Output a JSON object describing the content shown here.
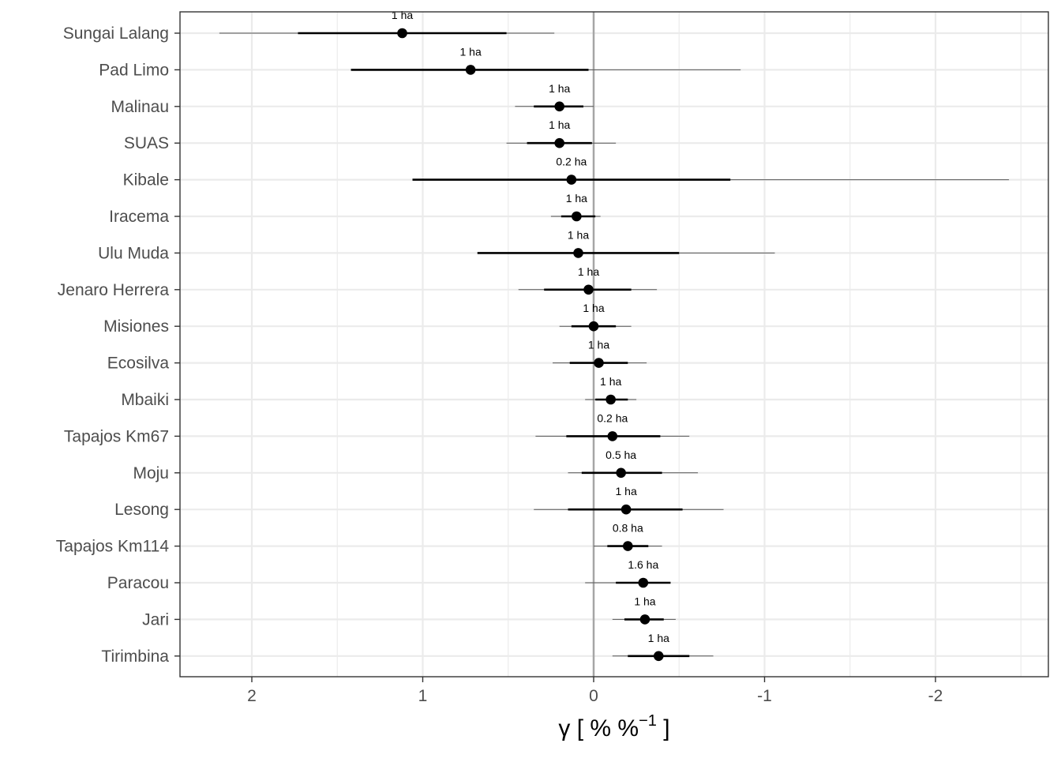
{
  "chart_data": {
    "type": "scatter",
    "title": "",
    "xlabel_main": "γ [ % %",
    "xlabel_sup": "−1",
    "xlabel_end": " ]",
    "ylabel": "",
    "x_reversed": true,
    "xlim": [
      2.4,
      -2.65
    ],
    "xticks": [
      2,
      1,
      0,
      -1,
      -2
    ],
    "xtick_labels": [
      "2",
      "1",
      "0",
      "-1",
      "-2"
    ],
    "grid": true,
    "zero_line": 0,
    "colors": {
      "points": "#000000",
      "grid": "#ebebeb",
      "zero_line": "#a6a6a6",
      "inner_interval": "#000000",
      "outer_interval": "#555555",
      "axis_text": "#4d4d4d",
      "axis_title": "#000000"
    },
    "sites": [
      {
        "name": "Sungai Lalang",
        "estimate": 1.12,
        "inner": [
          1.73,
          0.51
        ],
        "outer": [
          2.19,
          0.23
        ],
        "area": "1 ha"
      },
      {
        "name": "Pad Limo",
        "estimate": 0.72,
        "inner": [
          1.42,
          0.03
        ],
        "outer": [
          1.42,
          -0.86
        ],
        "area": "1 ha"
      },
      {
        "name": "Malinau",
        "estimate": 0.2,
        "inner": [
          0.35,
          0.06
        ],
        "outer": [
          0.46,
          0.0
        ],
        "area": "1 ha"
      },
      {
        "name": "SUAS",
        "estimate": 0.2,
        "inner": [
          0.39,
          0.01
        ],
        "outer": [
          0.51,
          -0.13
        ],
        "area": "1 ha"
      },
      {
        "name": "Kibale",
        "estimate": 0.13,
        "inner": [
          1.06,
          -0.8
        ],
        "outer": [
          1.06,
          -2.43
        ],
        "area": "0.2 ha"
      },
      {
        "name": "Iracema",
        "estimate": 0.1,
        "inner": [
          0.19,
          -0.01
        ],
        "outer": [
          0.25,
          -0.04
        ],
        "area": "1 ha"
      },
      {
        "name": "Ulu Muda",
        "estimate": 0.09,
        "inner": [
          0.68,
          -0.5
        ],
        "outer": [
          0.68,
          -1.06
        ],
        "area": "1 ha"
      },
      {
        "name": "Jenaro Herrera",
        "estimate": 0.03,
        "inner": [
          0.29,
          -0.22
        ],
        "outer": [
          0.44,
          -0.37
        ],
        "area": "1 ha"
      },
      {
        "name": "Misiones",
        "estimate": 0.0,
        "inner": [
          0.13,
          -0.13
        ],
        "outer": [
          0.2,
          -0.22
        ],
        "area": "1 ha"
      },
      {
        "name": "Ecosilva",
        "estimate": -0.03,
        "inner": [
          0.14,
          -0.2
        ],
        "outer": [
          0.24,
          -0.31
        ],
        "area": "1 ha"
      },
      {
        "name": "Mbaiki",
        "estimate": -0.1,
        "inner": [
          -0.01,
          -0.2
        ],
        "outer": [
          0.05,
          -0.25
        ],
        "area": "1 ha"
      },
      {
        "name": "Tapajos Km67",
        "estimate": -0.11,
        "inner": [
          0.16,
          -0.39
        ],
        "outer": [
          0.34,
          -0.56
        ],
        "area": "0.2 ha"
      },
      {
        "name": "Moju",
        "estimate": -0.16,
        "inner": [
          0.07,
          -0.4
        ],
        "outer": [
          0.15,
          -0.61
        ],
        "area": "0.5 ha"
      },
      {
        "name": "Lesong",
        "estimate": -0.19,
        "inner": [
          0.15,
          -0.52
        ],
        "outer": [
          0.35,
          -0.76
        ],
        "area": "1 ha"
      },
      {
        "name": "Tapajos Km114",
        "estimate": -0.2,
        "inner": [
          -0.08,
          -0.32
        ],
        "outer": [
          0.0,
          -0.4
        ],
        "area": "0.8 ha"
      },
      {
        "name": "Paracou",
        "estimate": -0.29,
        "inner": [
          -0.13,
          -0.45
        ],
        "outer": [
          0.05,
          -0.45
        ],
        "area": "1.6 ha"
      },
      {
        "name": "Jari",
        "estimate": -0.3,
        "inner": [
          -0.18,
          -0.41
        ],
        "outer": [
          -0.11,
          -0.48
        ],
        "area": "1 ha"
      },
      {
        "name": "Tirimbina",
        "estimate": -0.38,
        "inner": [
          -0.2,
          -0.56
        ],
        "outer": [
          -0.11,
          -0.7
        ],
        "area": "1 ha"
      }
    ]
  }
}
